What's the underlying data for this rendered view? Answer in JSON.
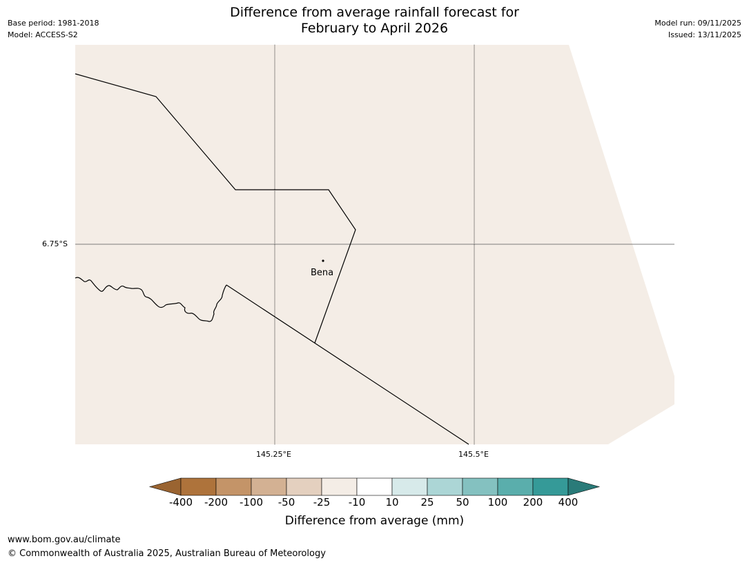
{
  "header": {
    "title_line1": "Difference from average rainfall forecast for",
    "title_line2": "February to April 2026",
    "base_period": "Base period: 1981-2018",
    "model": "Model: ACCESS-S2",
    "model_run": "Model run: 09/11/2025",
    "issued": "Issued: 13/11/2025"
  },
  "map": {
    "fill_color": "#f4ede6",
    "latitude_labels": [
      "6.75°S"
    ],
    "longitude_labels": [
      "145.25°E",
      "145.5°E"
    ],
    "place_label": "Bena"
  },
  "colorbar": {
    "title": "Difference from average (mm)",
    "ticks": [
      "-400",
      "-200",
      "-100",
      "-50",
      "-25",
      "-10",
      "10",
      "25",
      "50",
      "100",
      "200",
      "400"
    ],
    "under_color": "#9a6431",
    "over_color": "#2a7b79",
    "colors": [
      "#ae733b",
      "#c49468",
      "#d3b193",
      "#e4d0bf",
      "#f4ede6",
      "#ffffff",
      "#d7eaea",
      "#acd6d6",
      "#84c1c0",
      "#5aaeac",
      "#359a98"
    ]
  },
  "footer": {
    "url": "www.bom.gov.au/climate",
    "copyright": "© Commonwealth of Australia 2025, Australian Bureau of Meteorology"
  }
}
